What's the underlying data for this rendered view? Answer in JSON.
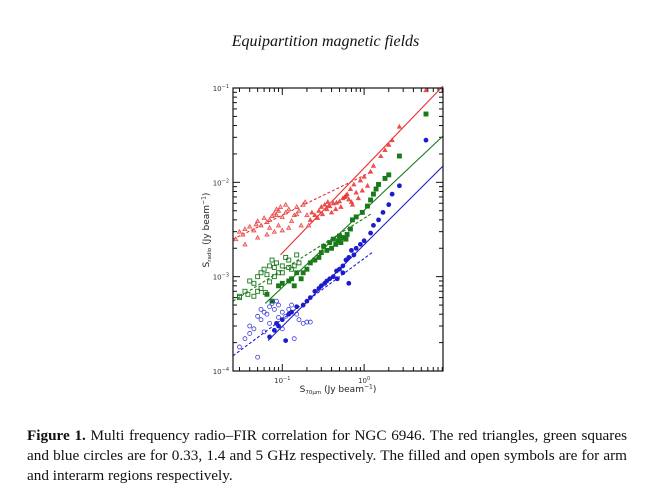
{
  "page": {
    "running_title": "Equipartition magnetic fields",
    "caption": {
      "label": "Figure 1.",
      "text": " Multi frequency radio–FIR correlation for NGC 6946. The red triangles, green squares and blue circles are for 0.33, 1.4 and 5 GHz respectively. The filled and open symbols are for arm and interarm regions respectively."
    }
  },
  "chart_data": {
    "type": "scatter",
    "title": "",
    "xlabel": "S_70μm (Jy beam^-1)",
    "xlabel_main": "S",
    "xlabel_sub": "70μm",
    "xlabel_rest": " (Jy beam",
    "xlabel_sup": "−1",
    "xlabel_close": ")",
    "ylabel_main": "S",
    "ylabel_sub": "radio",
    "ylabel_rest": " (Jy beam",
    "ylabel_sup": "−1",
    "ylabel_close": ")",
    "xscale": "log",
    "yscale": "log",
    "xlim": [
      0.025,
      9.2
    ],
    "ylim": [
      0.0001,
      0.1
    ],
    "x_major_ticks": [
      {
        "value": 0.1,
        "base": "10",
        "exp": "−1"
      },
      {
        "value": 1,
        "base": "10",
        "exp": "0"
      }
    ],
    "y_major_ticks": [
      {
        "value": 0.1,
        "base": "10",
        "exp": "−1"
      },
      {
        "value": 0.01,
        "base": "10",
        "exp": "−2"
      },
      {
        "value": 0.001,
        "base": "10",
        "exp": "−3"
      },
      {
        "value": 0.0001,
        "base": "10",
        "exp": "−4"
      }
    ],
    "grid": false,
    "legend": "none",
    "series": [
      {
        "name": "0.33 GHz arm",
        "color": "#e8312f",
        "marker": "triangle",
        "filled": true,
        "points": [
          [
            5.7,
            0.095
          ],
          [
            2.7,
            0.039
          ],
          [
            2.2,
            0.028
          ],
          [
            2.0,
            0.025
          ],
          [
            1.8,
            0.022
          ],
          [
            1.6,
            0.019
          ],
          [
            1.3,
            0.015
          ],
          [
            1.2,
            0.013
          ],
          [
            1.0,
            0.0115
          ],
          [
            0.9,
            0.0105
          ],
          [
            0.75,
            0.0095
          ],
          [
            0.68,
            0.0085
          ],
          [
            0.62,
            0.0075
          ],
          [
            0.58,
            0.007
          ],
          [
            0.55,
            0.0068
          ],
          [
            0.5,
            0.0063
          ],
          [
            0.46,
            0.0061
          ],
          [
            0.42,
            0.006
          ],
          [
            0.38,
            0.0056
          ],
          [
            0.35,
            0.0052
          ],
          [
            0.33,
            0.0058
          ],
          [
            0.3,
            0.0055
          ],
          [
            0.28,
            0.005
          ],
          [
            0.25,
            0.0045
          ],
          [
            0.23,
            0.0048
          ],
          [
            0.6,
            0.0072
          ],
          [
            0.7,
            0.0062
          ],
          [
            0.8,
            0.0078
          ],
          [
            0.52,
            0.0055
          ],
          [
            0.45,
            0.0052
          ],
          [
            0.4,
            0.0048
          ],
          [
            0.36,
            0.0062
          ],
          [
            0.27,
            0.0042
          ],
          [
            0.31,
            0.0046
          ],
          [
            0.65,
            0.0066
          ],
          [
            0.72,
            0.0058
          ],
          [
            0.85,
            0.0068
          ],
          [
            0.95,
            0.0082
          ],
          [
            1.1,
            0.0092
          ],
          [
            0.22,
            0.004
          ]
        ]
      },
      {
        "name": "0.33 GHz interarm",
        "color": "#e8312f",
        "marker": "triangle",
        "filled": false,
        "points": [
          [
            0.027,
            0.0025
          ],
          [
            0.03,
            0.003
          ],
          [
            0.033,
            0.0028
          ],
          [
            0.035,
            0.0032
          ],
          [
            0.04,
            0.0034
          ],
          [
            0.045,
            0.0031
          ],
          [
            0.048,
            0.0036
          ],
          [
            0.05,
            0.0039
          ],
          [
            0.055,
            0.0035
          ],
          [
            0.06,
            0.0042
          ],
          [
            0.065,
            0.0038
          ],
          [
            0.07,
            0.004
          ],
          [
            0.075,
            0.0044
          ],
          [
            0.08,
            0.0047
          ],
          [
            0.085,
            0.0045
          ],
          [
            0.09,
            0.005
          ],
          [
            0.1,
            0.0043
          ],
          [
            0.11,
            0.0048
          ],
          [
            0.12,
            0.0052
          ],
          [
            0.13,
            0.0039
          ],
          [
            0.14,
            0.0045
          ],
          [
            0.15,
            0.0055
          ],
          [
            0.16,
            0.005
          ],
          [
            0.18,
            0.0058
          ],
          [
            0.2,
            0.0045
          ],
          [
            0.21,
            0.0035
          ],
          [
            0.17,
            0.0035
          ],
          [
            0.12,
            0.0033
          ],
          [
            0.09,
            0.0035
          ],
          [
            0.07,
            0.0033
          ],
          [
            0.035,
            0.0022
          ],
          [
            0.05,
            0.0026
          ],
          [
            0.08,
            0.003
          ],
          [
            0.1,
            0.0031
          ],
          [
            0.065,
            0.0028
          ],
          [
            0.19,
            0.0062
          ],
          [
            0.15,
            0.0046
          ],
          [
            0.085,
            0.0052
          ],
          [
            0.095,
            0.0055
          ],
          [
            0.11,
            0.0058
          ]
        ]
      },
      {
        "name": "1.4 GHz arm",
        "color": "#1a7a1a",
        "marker": "square",
        "filled": true,
        "points": [
          [
            5.7,
            0.053
          ],
          [
            2.7,
            0.019
          ],
          [
            2.0,
            0.012
          ],
          [
            1.8,
            0.011
          ],
          [
            1.5,
            0.0095
          ],
          [
            1.4,
            0.0085
          ],
          [
            1.3,
            0.0075
          ],
          [
            1.2,
            0.0065
          ],
          [
            1.1,
            0.0056
          ],
          [
            0.95,
            0.0048
          ],
          [
            0.8,
            0.0043
          ],
          [
            0.72,
            0.004
          ],
          [
            0.68,
            0.0032
          ],
          [
            0.62,
            0.0028
          ],
          [
            0.6,
            0.0025
          ],
          [
            0.55,
            0.0026
          ],
          [
            0.52,
            0.0023
          ],
          [
            0.5,
            0.0027
          ],
          [
            0.48,
            0.0024
          ],
          [
            0.45,
            0.0022
          ],
          [
            0.42,
            0.0025
          ],
          [
            0.4,
            0.002
          ],
          [
            0.38,
            0.0023
          ],
          [
            0.35,
            0.0019
          ],
          [
            0.32,
            0.0021
          ],
          [
            0.3,
            0.0018
          ],
          [
            0.28,
            0.0016
          ],
          [
            0.25,
            0.0015
          ],
          [
            0.22,
            0.0014
          ],
          [
            0.2,
            0.0012
          ],
          [
            0.18,
            0.0011
          ],
          [
            0.15,
            0.0011
          ],
          [
            0.13,
            0.00095
          ],
          [
            0.12,
            0.0009
          ],
          [
            0.1,
            0.00085
          ],
          [
            0.09,
            0.0008
          ],
          [
            0.065,
            0.00065
          ],
          [
            0.075,
            0.00055
          ],
          [
            0.14,
            0.0008
          ],
          [
            0.17,
            0.00095
          ]
        ]
      },
      {
        "name": "1.4 GHz interarm",
        "color": "#1a7a1a",
        "marker": "square",
        "filled": false,
        "points": [
          [
            0.03,
            0.0006
          ],
          [
            0.035,
            0.0007
          ],
          [
            0.038,
            0.00065
          ],
          [
            0.04,
            0.0009
          ],
          [
            0.045,
            0.00085
          ],
          [
            0.05,
            0.001
          ],
          [
            0.055,
            0.0011
          ],
          [
            0.06,
            0.0012
          ],
          [
            0.065,
            0.00105
          ],
          [
            0.07,
            0.0013
          ],
          [
            0.075,
            0.0015
          ],
          [
            0.08,
            0.00125
          ],
          [
            0.085,
            0.0014
          ],
          [
            0.09,
            0.0011
          ],
          [
            0.1,
            0.0013
          ],
          [
            0.11,
            0.0016
          ],
          [
            0.12,
            0.0015
          ],
          [
            0.13,
            0.0012
          ],
          [
            0.15,
            0.0017
          ],
          [
            0.16,
            0.0014
          ],
          [
            0.05,
            0.0007
          ],
          [
            0.055,
            0.00075
          ],
          [
            0.062,
            0.00068
          ],
          [
            0.07,
            0.00088
          ],
          [
            0.08,
            0.001
          ],
          [
            0.1,
            0.0011
          ],
          [
            0.12,
            0.00125
          ],
          [
            0.14,
            0.0013
          ],
          [
            0.03,
            0.00062
          ],
          [
            0.045,
            0.00062
          ]
        ]
      },
      {
        "name": "5 GHz arm",
        "color": "#1c1ccc",
        "marker": "circle",
        "filled": true,
        "points": [
          [
            5.7,
            0.028
          ],
          [
            2.7,
            0.0092
          ],
          [
            2.2,
            0.0075
          ],
          [
            2.0,
            0.0058
          ],
          [
            1.7,
            0.0048
          ],
          [
            1.5,
            0.004
          ],
          [
            1.3,
            0.0035
          ],
          [
            1.2,
            0.0029
          ],
          [
            1.0,
            0.0024
          ],
          [
            0.9,
            0.0022
          ],
          [
            0.8,
            0.002
          ],
          [
            0.75,
            0.0017
          ],
          [
            0.7,
            0.0019
          ],
          [
            0.65,
            0.0016
          ],
          [
            0.6,
            0.0015
          ],
          [
            0.55,
            0.0013
          ],
          [
            0.5,
            0.0012
          ],
          [
            0.46,
            0.00115
          ],
          [
            0.42,
            0.001
          ],
          [
            0.38,
            0.00095
          ],
          [
            0.35,
            0.0009
          ],
          [
            0.33,
            0.00085
          ],
          [
            0.3,
            0.0008
          ],
          [
            0.28,
            0.00075
          ],
          [
            0.25,
            0.0007
          ],
          [
            0.22,
            0.0006
          ],
          [
            0.2,
            0.00055
          ],
          [
            0.18,
            0.0005
          ],
          [
            0.15,
            0.00048
          ],
          [
            0.13,
            0.00042
          ],
          [
            0.12,
            0.0004
          ],
          [
            0.1,
            0.00035
          ],
          [
            0.09,
            0.0003
          ],
          [
            0.08,
            0.00027
          ],
          [
            0.07,
            0.00023
          ],
          [
            0.65,
            0.00085
          ],
          [
            0.55,
            0.0011
          ],
          [
            0.47,
            0.00095
          ],
          [
            0.11,
            0.00021
          ],
          [
            0.085,
            0.00032
          ]
        ]
      },
      {
        "name": "5 GHz interarm",
        "color": "#1c1ccc",
        "marker": "circle",
        "filled": false,
        "points": [
          [
            0.03,
            0.00018
          ],
          [
            0.035,
            0.00022
          ],
          [
            0.04,
            0.0003
          ],
          [
            0.045,
            0.00028
          ],
          [
            0.05,
            0.00038
          ],
          [
            0.055,
            0.00035
          ],
          [
            0.06,
            0.00042
          ],
          [
            0.065,
            0.0004
          ],
          [
            0.07,
            0.00048
          ],
          [
            0.075,
            0.00052
          ],
          [
            0.08,
            0.00045
          ],
          [
            0.085,
            0.00055
          ],
          [
            0.09,
            0.0005
          ],
          [
            0.1,
            0.00042
          ],
          [
            0.11,
            0.00038
          ],
          [
            0.12,
            0.00045
          ],
          [
            0.13,
            0.0005
          ],
          [
            0.15,
            0.0004
          ],
          [
            0.16,
            0.00035
          ],
          [
            0.18,
            0.00032
          ],
          [
            0.2,
            0.00033
          ],
          [
            0.22,
            0.00033
          ],
          [
            0.14,
            0.00022
          ],
          [
            0.05,
            0.00014
          ],
          [
            0.04,
            0.00025
          ],
          [
            0.06,
            0.00026
          ],
          [
            0.07,
            0.00032
          ],
          [
            0.09,
            0.00037
          ],
          [
            0.1,
            0.00028
          ],
          [
            0.055,
            0.00045
          ]
        ]
      }
    ],
    "fit_lines": [
      {
        "name": "0.33 GHz arm fit",
        "color": "#e8312f",
        "style": "solid",
        "points": [
          [
            0.095,
            0.0017
          ],
          [
            9.2,
            0.105
          ]
        ]
      },
      {
        "name": "1.4 GHz arm fit",
        "color": "#1a7a1a",
        "style": "solid",
        "points": [
          [
            0.062,
            0.00052
          ],
          [
            9.2,
            0.031
          ]
        ]
      },
      {
        "name": "5 GHz arm fit",
        "color": "#1c1ccc",
        "style": "solid",
        "points": [
          [
            0.067,
            0.00021
          ],
          [
            9.2,
            0.0149
          ]
        ]
      },
      {
        "name": "0.33 GHz interarm fit",
        "color": "#e8312f",
        "style": "dashed",
        "points": [
          [
            0.025,
            0.0025
          ],
          [
            1.25,
            0.013
          ]
        ]
      },
      {
        "name": "1.4 GHz interarm fit",
        "color": "#1a7a1a",
        "style": "dashed",
        "points": [
          [
            0.025,
            0.00055
          ],
          [
            1.25,
            0.0047
          ]
        ]
      },
      {
        "name": "5 GHz interarm fit",
        "color": "#1c1ccc",
        "style": "dashed",
        "points": [
          [
            0.025,
            0.000145
          ],
          [
            1.25,
            0.0018
          ]
        ]
      }
    ]
  }
}
